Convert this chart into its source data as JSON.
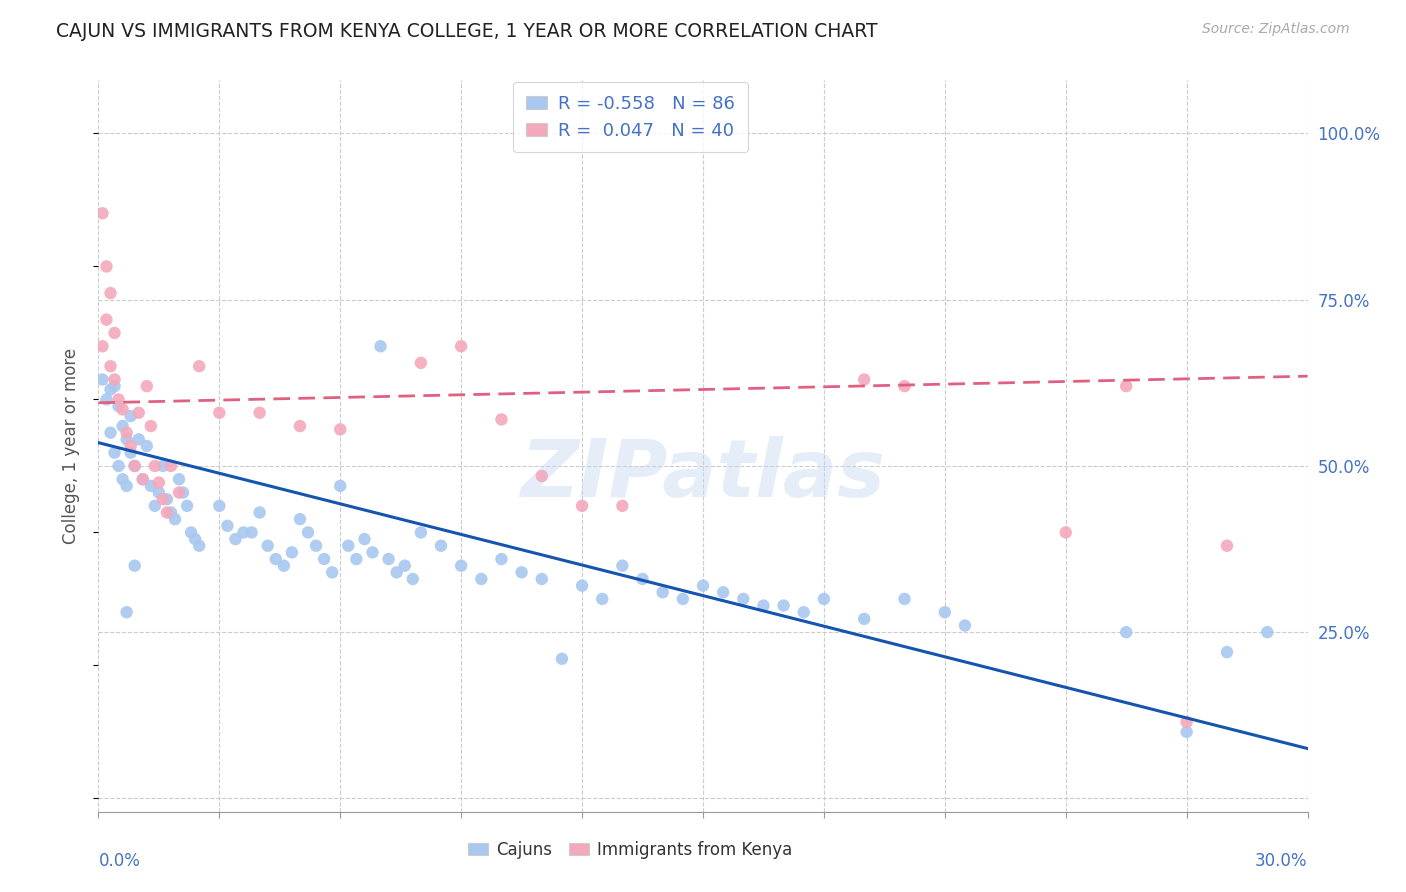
{
  "title": "CAJUN VS IMMIGRANTS FROM KENYA COLLEGE, 1 YEAR OR MORE CORRELATION CHART",
  "source": "Source: ZipAtlas.com",
  "ylabel": "College, 1 year or more",
  "y_tick_labels": [
    "",
    "25.0%",
    "50.0%",
    "75.0%",
    "100.0%"
  ],
  "y_tick_vals": [
    0.0,
    0.25,
    0.5,
    0.75,
    1.0
  ],
  "x_range": [
    0.0,
    0.3
  ],
  "y_range": [
    -0.02,
    1.08
  ],
  "legend1_line1": "R = -0.558   N = 86",
  "legend1_line2": "R =  0.047   N = 40",
  "blue_color": "#a8c8f0",
  "pink_color": "#f4a8bc",
  "trend_blue_color": "#1555b0",
  "trend_pink_color": "#e06080",
  "watermark": "ZIPatlas",
  "blue_dots": [
    [
      0.001,
      0.63
    ],
    [
      0.002,
      0.6
    ],
    [
      0.003,
      0.615
    ],
    [
      0.004,
      0.62
    ],
    [
      0.005,
      0.59
    ],
    [
      0.006,
      0.56
    ],
    [
      0.007,
      0.54
    ],
    [
      0.008,
      0.575
    ],
    [
      0.003,
      0.55
    ],
    [
      0.004,
      0.52
    ],
    [
      0.005,
      0.5
    ],
    [
      0.006,
      0.48
    ],
    [
      0.007,
      0.47
    ],
    [
      0.008,
      0.52
    ],
    [
      0.009,
      0.5
    ],
    [
      0.01,
      0.54
    ],
    [
      0.011,
      0.48
    ],
    [
      0.012,
      0.53
    ],
    [
      0.013,
      0.47
    ],
    [
      0.014,
      0.44
    ],
    [
      0.015,
      0.46
    ],
    [
      0.016,
      0.5
    ],
    [
      0.017,
      0.45
    ],
    [
      0.018,
      0.43
    ],
    [
      0.019,
      0.42
    ],
    [
      0.02,
      0.48
    ],
    [
      0.021,
      0.46
    ],
    [
      0.022,
      0.44
    ],
    [
      0.023,
      0.4
    ],
    [
      0.024,
      0.39
    ],
    [
      0.025,
      0.38
    ],
    [
      0.03,
      0.44
    ],
    [
      0.032,
      0.41
    ],
    [
      0.034,
      0.39
    ],
    [
      0.036,
      0.4
    ],
    [
      0.038,
      0.4
    ],
    [
      0.04,
      0.43
    ],
    [
      0.042,
      0.38
    ],
    [
      0.044,
      0.36
    ],
    [
      0.046,
      0.35
    ],
    [
      0.048,
      0.37
    ],
    [
      0.05,
      0.42
    ],
    [
      0.052,
      0.4
    ],
    [
      0.054,
      0.38
    ],
    [
      0.056,
      0.36
    ],
    [
      0.058,
      0.34
    ],
    [
      0.06,
      0.47
    ],
    [
      0.062,
      0.38
    ],
    [
      0.064,
      0.36
    ],
    [
      0.066,
      0.39
    ],
    [
      0.068,
      0.37
    ],
    [
      0.07,
      0.68
    ],
    [
      0.072,
      0.36
    ],
    [
      0.074,
      0.34
    ],
    [
      0.076,
      0.35
    ],
    [
      0.078,
      0.33
    ],
    [
      0.08,
      0.4
    ],
    [
      0.085,
      0.38
    ],
    [
      0.09,
      0.35
    ],
    [
      0.095,
      0.33
    ],
    [
      0.1,
      0.36
    ],
    [
      0.105,
      0.34
    ],
    [
      0.11,
      0.33
    ],
    [
      0.115,
      0.21
    ],
    [
      0.12,
      0.32
    ],
    [
      0.125,
      0.3
    ],
    [
      0.13,
      0.35
    ],
    [
      0.135,
      0.33
    ],
    [
      0.14,
      0.31
    ],
    [
      0.145,
      0.3
    ],
    [
      0.15,
      0.32
    ],
    [
      0.155,
      0.31
    ],
    [
      0.16,
      0.3
    ],
    [
      0.165,
      0.29
    ],
    [
      0.17,
      0.29
    ],
    [
      0.175,
      0.28
    ],
    [
      0.18,
      0.3
    ],
    [
      0.19,
      0.27
    ],
    [
      0.2,
      0.3
    ],
    [
      0.21,
      0.28
    ],
    [
      0.215,
      0.26
    ],
    [
      0.255,
      0.25
    ],
    [
      0.27,
      0.1
    ],
    [
      0.28,
      0.22
    ],
    [
      0.29,
      0.25
    ],
    [
      0.007,
      0.28
    ],
    [
      0.009,
      0.35
    ]
  ],
  "pink_dots": [
    [
      0.001,
      0.68
    ],
    [
      0.002,
      0.72
    ],
    [
      0.003,
      0.65
    ],
    [
      0.004,
      0.63
    ],
    [
      0.005,
      0.6
    ],
    [
      0.006,
      0.585
    ],
    [
      0.007,
      0.55
    ],
    [
      0.008,
      0.53
    ],
    [
      0.009,
      0.5
    ],
    [
      0.01,
      0.58
    ],
    [
      0.011,
      0.48
    ],
    [
      0.012,
      0.62
    ],
    [
      0.013,
      0.56
    ],
    [
      0.014,
      0.5
    ],
    [
      0.015,
      0.475
    ],
    [
      0.016,
      0.45
    ],
    [
      0.017,
      0.43
    ],
    [
      0.018,
      0.5
    ],
    [
      0.02,
      0.46
    ],
    [
      0.025,
      0.65
    ],
    [
      0.03,
      0.58
    ],
    [
      0.04,
      0.58
    ],
    [
      0.05,
      0.56
    ],
    [
      0.06,
      0.555
    ],
    [
      0.001,
      0.88
    ],
    [
      0.002,
      0.8
    ],
    [
      0.003,
      0.76
    ],
    [
      0.004,
      0.7
    ],
    [
      0.08,
      0.655
    ],
    [
      0.09,
      0.68
    ],
    [
      0.1,
      0.57
    ],
    [
      0.11,
      0.485
    ],
    [
      0.12,
      0.44
    ],
    [
      0.13,
      0.44
    ],
    [
      0.19,
      0.63
    ],
    [
      0.2,
      0.62
    ],
    [
      0.24,
      0.4
    ],
    [
      0.255,
      0.62
    ],
    [
      0.27,
      0.115
    ],
    [
      0.28,
      0.38
    ]
  ],
  "blue_trend_x": [
    0.0,
    0.3
  ],
  "blue_trend_y": [
    0.535,
    0.075
  ],
  "pink_trend_x": [
    0.0,
    0.3
  ],
  "pink_trend_y": [
    0.595,
    0.635
  ],
  "grid_color": "#cccccc",
  "grid_x_vals": [
    0.0,
    0.03,
    0.06,
    0.09,
    0.12,
    0.15,
    0.18,
    0.21,
    0.24,
    0.27,
    0.3
  ],
  "background": "#ffffff",
  "title_color": "#222222",
  "right_label_color": "#4472c4"
}
